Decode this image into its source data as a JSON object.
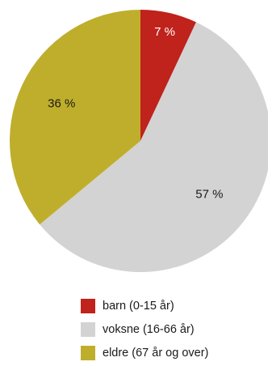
{
  "chart_data": {
    "type": "pie",
    "title": "",
    "legend_position": "bottom",
    "slices": [
      {
        "label": "barn (0-15 år)",
        "value": 7,
        "value_label": "7 %",
        "color": "#c0221c",
        "label_color": "#ffffff"
      },
      {
        "label": "voksne (16-66 år)",
        "value": 57,
        "value_label": "57 %",
        "color": "#d3d3d3",
        "label_color": "#1a1a1a"
      },
      {
        "label": "eldre (67 år og over)",
        "value": 36,
        "value_label": "36 %",
        "color": "#bfae2c",
        "label_color": "#1a1a1a"
      }
    ]
  }
}
